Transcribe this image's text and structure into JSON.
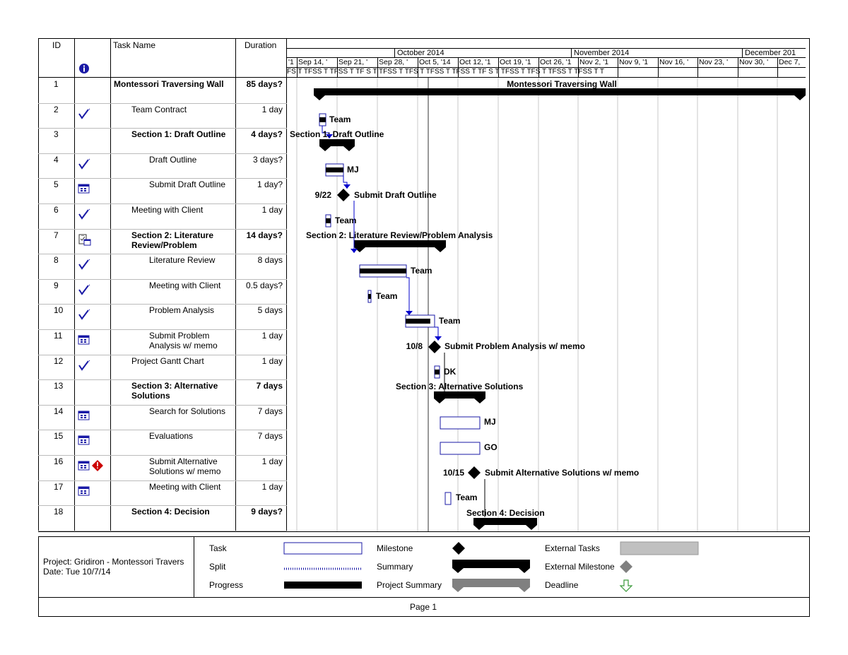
{
  "headers": {
    "id": "ID",
    "name": "Task Name",
    "duration": "Duration"
  },
  "timeline": {
    "months": [
      "October 2014",
      "November 2014",
      "December 201"
    ],
    "weeks": [
      "'1",
      "Sep 14, '",
      "Sep 21, '",
      "Sep 28, '",
      "Oct 5, '14",
      "Oct 12, '1",
      "Oct 19, '1",
      "Oct 26, '1",
      "Nov 2, '1",
      "Nov 9, '1",
      "Nov 16, '",
      "Nov 23, '",
      "Nov 30, '",
      "Dec 7,"
    ],
    "days": [
      "FS",
      "T",
      "TFSS",
      "T",
      "TFSS",
      "T",
      "TF",
      "S",
      "T",
      "TFSS",
      "T",
      "TFS",
      "T",
      "TFSS",
      "T",
      "TFSS",
      "T",
      "TF",
      "S",
      "T",
      "TFSS",
      "T",
      "TFS",
      "T",
      "TFSS",
      "T",
      "TFSS",
      "T",
      "T"
    ]
  },
  "tasks": [
    {
      "id": "1",
      "name": "Montessori Traversing Wall",
      "duration": "85 days?",
      "bold": true,
      "indent": 0,
      "icon": ""
    },
    {
      "id": "2",
      "name": "Team Contract",
      "duration": "1 day",
      "bold": false,
      "indent": 1,
      "icon": "check"
    },
    {
      "id": "3",
      "name": "Section 1: Draft Outline",
      "duration": "4 days?",
      "bold": true,
      "indent": 1,
      "icon": ""
    },
    {
      "id": "4",
      "name": "Draft Outline",
      "duration": "3 days?",
      "bold": false,
      "indent": 2,
      "icon": "check"
    },
    {
      "id": "5",
      "name": "Submit Draft Outline",
      "duration": "1 day?",
      "bold": false,
      "indent": 2,
      "icon": "calendar"
    },
    {
      "id": "6",
      "name": "Meeting with Client",
      "duration": "1 day",
      "bold": false,
      "indent": 1,
      "icon": "check"
    },
    {
      "id": "7",
      "name": "Section 2: Literature\nReview/Problem",
      "duration": "14 days?",
      "bold": true,
      "indent": 1,
      "icon": "notes"
    },
    {
      "id": "8",
      "name": "Literature Review",
      "duration": "8 days",
      "bold": false,
      "indent": 2,
      "icon": "check"
    },
    {
      "id": "9",
      "name": "Meeting with Client",
      "duration": "0.5 days?",
      "bold": false,
      "indent": 2,
      "icon": "check"
    },
    {
      "id": "10",
      "name": "Problem Analysis",
      "duration": "5 days",
      "bold": false,
      "indent": 2,
      "icon": "check"
    },
    {
      "id": "11",
      "name": "Submit Problem\nAnalysis w/ memo",
      "duration": "1 day",
      "bold": false,
      "indent": 2,
      "icon": "calendar"
    },
    {
      "id": "12",
      "name": "Project Gantt Chart",
      "duration": "1 day",
      "bold": false,
      "indent": 1,
      "icon": "check"
    },
    {
      "id": "13",
      "name": "Section 3: Alternative\nSolutions",
      "duration": "7 days",
      "bold": true,
      "indent": 1,
      "icon": ""
    },
    {
      "id": "14",
      "name": "Search for Solutions",
      "duration": "7 days",
      "bold": false,
      "indent": 2,
      "icon": "calendar"
    },
    {
      "id": "15",
      "name": "Evaluations",
      "duration": "7 days",
      "bold": false,
      "indent": 2,
      "icon": "calendar"
    },
    {
      "id": "16",
      "name": "Submit Alternative\nSolutions w/ memo",
      "duration": "1 day",
      "bold": false,
      "indent": 2,
      "icon": "calendar-alert"
    },
    {
      "id": "17",
      "name": "Meeting with Client",
      "duration": "1 day",
      "bold": false,
      "indent": 2,
      "icon": "calendar"
    },
    {
      "id": "18",
      "name": "Section 4: Decision",
      "duration": "9 days?",
      "bold": true,
      "indent": 1,
      "icon": ""
    }
  ],
  "gantt_labels": {
    "r1": "Montessori Traversing Wall",
    "r2": "Team",
    "r3": "Section 1: Draft Outline",
    "r4": "MJ",
    "r5_date": "9/22",
    "r5": "Submit Draft Outline",
    "r6": "Team",
    "r7": "Section 2: Literature Review/Problem Analysis",
    "r8": "Team",
    "r9": "Team",
    "r10": "Team",
    "r11_date": "10/8",
    "r11": "Submit Problem Analysis w/ memo",
    "r12": "DK",
    "r13": "Section 3: Alternative Solutions",
    "r14": "MJ",
    "r15": "GO",
    "r16_date": "10/15",
    "r16": "Submit Alternative Solutions w/ memo",
    "r17": "Team",
    "r18": "Section 4: Decision"
  },
  "footer": {
    "project": "Project: Gridiron -  Montessori Travers",
    "date": "Date: Tue 10/7/14",
    "page": "Page 1"
  },
  "legend": {
    "task": "Task",
    "split": "Split",
    "progress": "Progress",
    "milestone": "Milestone",
    "summary": "Summary",
    "project_summary": "Project Summary",
    "external_tasks": "External Tasks",
    "external_milestone": "External Milestone",
    "deadline": "Deadline"
  },
  "colors": {
    "bar_outline": "#1a1aa6",
    "link": "#0000cc",
    "grey": "#808080",
    "light_grey": "#c0c0c0",
    "deadline": "#3a9a3a",
    "alert": "#cc0000"
  }
}
